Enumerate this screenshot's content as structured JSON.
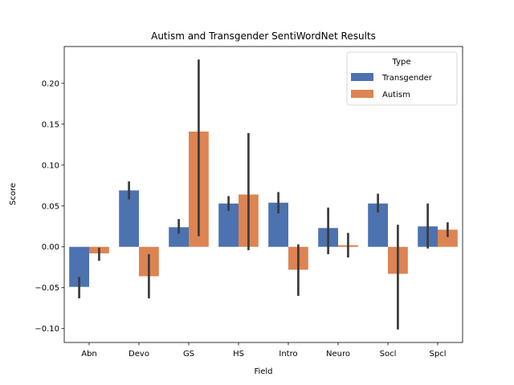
{
  "chart_data": {
    "type": "bar",
    "title": "Autism and Transgender SentiWordNet Results",
    "xlabel": "Field",
    "ylabel": "Score",
    "categories": [
      "Abn",
      "Devo",
      "GS",
      "HS",
      "Intro",
      "Neuro",
      "Socl",
      "Spcl"
    ],
    "ylim": [
      -0.117,
      0.245
    ],
    "yticks": [
      -0.1,
      -0.05,
      0.0,
      0.05,
      0.1,
      0.15,
      0.2
    ],
    "ytick_labels": [
      "−0.10",
      "−0.05",
      "0.00",
      "0.05",
      "0.10",
      "0.15",
      "0.20"
    ],
    "grid": false,
    "legend": {
      "title": "Type",
      "position": "top-right"
    },
    "series": [
      {
        "name": "Transgender",
        "color": "#4c72b0",
        "values": [
          -0.049,
          0.069,
          0.024,
          0.053,
          0.054,
          0.023,
          0.053,
          0.025
        ],
        "ci_low": [
          -0.063,
          0.058,
          0.016,
          0.044,
          0.041,
          -0.009,
          0.042,
          -0.002
        ],
        "ci_high": [
          -0.037,
          0.08,
          0.034,
          0.062,
          0.067,
          0.048,
          0.065,
          0.053
        ]
      },
      {
        "name": "Autism",
        "color": "#dd8452",
        "values": [
          -0.008,
          -0.036,
          0.141,
          0.064,
          -0.028,
          0.002,
          -0.033,
          0.021
        ],
        "ci_low": [
          -0.017,
          -0.063,
          0.013,
          -0.004,
          -0.06,
          -0.013,
          -0.101,
          0.012
        ],
        "ci_high": [
          -0.001,
          -0.009,
          0.229,
          0.139,
          0.003,
          0.017,
          0.027,
          0.03
        ]
      }
    ]
  }
}
